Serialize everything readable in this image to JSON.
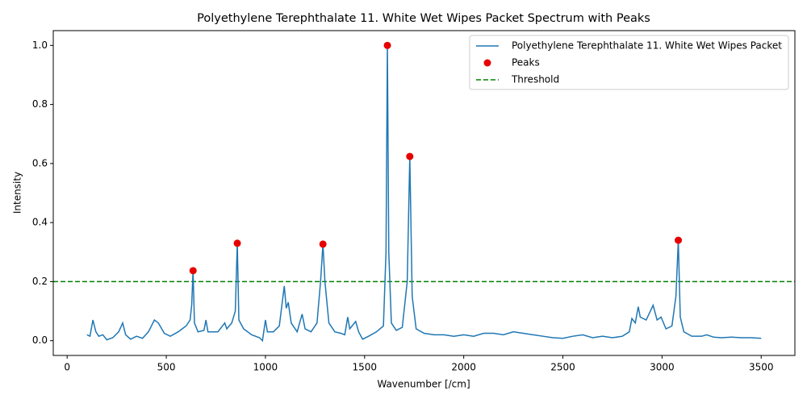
{
  "chart_data": {
    "type": "line",
    "title": "Polyethylene Terephthalate 11. White Wet Wipes Packet Spectrum with Peaks",
    "x_label": "Wavenumber [/cm]",
    "y_label": "Intensity",
    "xlim": [
      -70,
      3670
    ],
    "ylim": [
      -0.05,
      1.05
    ],
    "xticks": [
      0,
      500,
      1000,
      1500,
      2000,
      2500,
      3000,
      3500
    ],
    "yticks": [
      {
        "value": 0,
        "label": "0.0"
      },
      {
        "value": 0.2,
        "label": "0.2"
      },
      {
        "value": 0.4,
        "label": "0.4"
      },
      {
        "value": 0.6,
        "label": "0.6"
      },
      {
        "value": 0.8,
        "label": "0.8"
      },
      {
        "value": 1,
        "label": "1.0"
      }
    ],
    "legend": "upper right",
    "series": [
      {
        "name": "Polyethylene Terephthalate 11. White Wet Wipes Packet",
        "type": "line",
        "color": "#1f77b4",
        "x": [
          100,
          115,
          130,
          145,
          160,
          180,
          200,
          230,
          260,
          280,
          295,
          320,
          350,
          380,
          410,
          440,
          460,
          490,
          520,
          560,
          600,
          620,
          628,
          635,
          642,
          660,
          690,
          700,
          710,
          760,
          795,
          805,
          830,
          848,
          858,
          866,
          890,
          930,
          970,
          985,
          1000,
          1010,
          1040,
          1070,
          1095,
          1105,
          1115,
          1130,
          1160,
          1185,
          1200,
          1230,
          1260,
          1278,
          1290,
          1300,
          1320,
          1350,
          1380,
          1400,
          1415,
          1425,
          1455,
          1470,
          1490,
          1520,
          1560,
          1595,
          1608,
          1615,
          1622,
          1635,
          1660,
          1690,
          1715,
          1728,
          1740,
          1760,
          1800,
          1850,
          1900,
          1950,
          2000,
          2050,
          2100,
          2150,
          2200,
          2250,
          2300,
          2350,
          2400,
          2450,
          2500,
          2550,
          2600,
          2650,
          2700,
          2750,
          2800,
          2835,
          2848,
          2865,
          2880,
          2890,
          2920,
          2955,
          2975,
          2995,
          3020,
          3050,
          3070,
          3082,
          3092,
          3110,
          3150,
          3200,
          3225,
          3260,
          3300,
          3350,
          3400,
          3450,
          3500
        ],
        "values": [
          0.02,
          0.015,
          0.07,
          0.03,
          0.015,
          0.02,
          0.003,
          0.01,
          0.03,
          0.06,
          0.02,
          0.005,
          0.015,
          0.008,
          0.03,
          0.07,
          0.06,
          0.025,
          0.015,
          0.03,
          0.05,
          0.07,
          0.12,
          0.237,
          0.06,
          0.03,
          0.035,
          0.07,
          0.03,
          0.03,
          0.06,
          0.04,
          0.06,
          0.1,
          0.33,
          0.07,
          0.04,
          0.02,
          0.01,
          0.0,
          0.07,
          0.03,
          0.03,
          0.05,
          0.185,
          0.11,
          0.13,
          0.06,
          0.03,
          0.09,
          0.04,
          0.03,
          0.06,
          0.2,
          0.327,
          0.2,
          0.06,
          0.03,
          0.025,
          0.02,
          0.08,
          0.04,
          0.065,
          0.03,
          0.005,
          0.015,
          0.03,
          0.05,
          0.3,
          1.0,
          0.3,
          0.06,
          0.035,
          0.045,
          0.2,
          0.624,
          0.15,
          0.04,
          0.025,
          0.02,
          0.02,
          0.015,
          0.02,
          0.015,
          0.025,
          0.025,
          0.02,
          0.03,
          0.025,
          0.02,
          0.015,
          0.01,
          0.008,
          0.015,
          0.02,
          0.01,
          0.015,
          0.01,
          0.015,
          0.03,
          0.075,
          0.06,
          0.115,
          0.08,
          0.07,
          0.12,
          0.07,
          0.08,
          0.04,
          0.05,
          0.15,
          0.34,
          0.08,
          0.03,
          0.015,
          0.015,
          0.02,
          0.012,
          0.01,
          0.012,
          0.01,
          0.01,
          0.008
        ]
      },
      {
        "name": "Peaks",
        "type": "scatter",
        "color": "#e60000",
        "x": [
          635,
          858,
          1290,
          1615,
          1728,
          3082
        ],
        "values": [
          0.237,
          0.33,
          0.327,
          1.0,
          0.624,
          0.34
        ]
      }
    ],
    "hlines": [
      {
        "name": "Threshold",
        "color": "green",
        "value": 0.2,
        "dashed": true
      }
    ]
  }
}
